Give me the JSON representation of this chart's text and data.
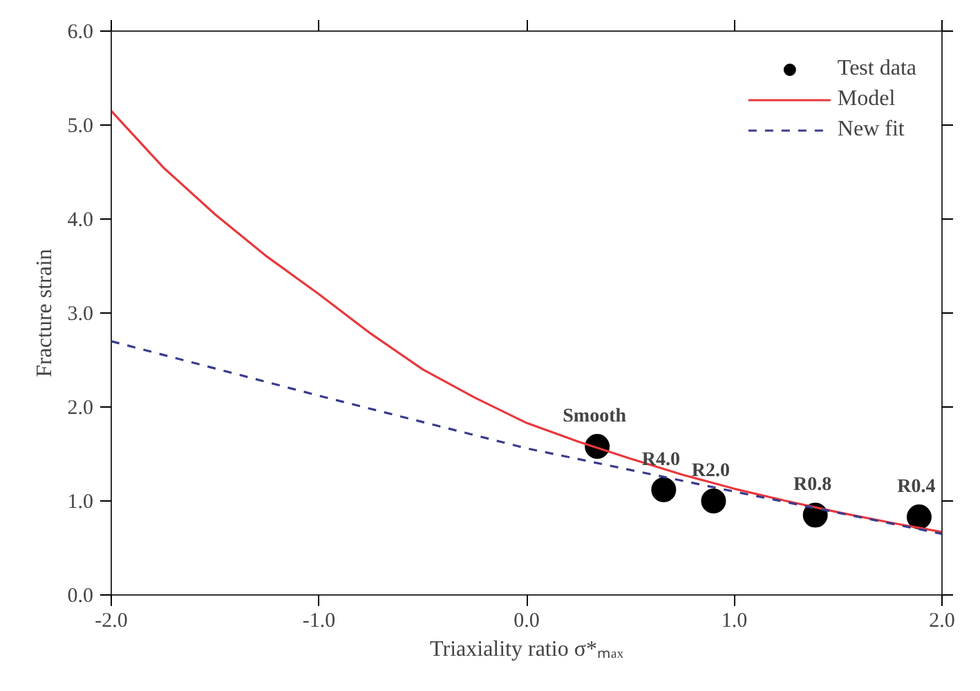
{
  "chart_data": {
    "type": "line",
    "xlabel": "Triaxiality ratio σ*ₘₐₓ",
    "ylabel": "Fracture strain",
    "xlim": [
      -2,
      2
    ],
    "ylim": [
      0,
      6
    ],
    "xticks": [
      {
        "value": -2,
        "label": "-2.0"
      },
      {
        "value": -1,
        "label": "-1.0"
      },
      {
        "value": 0,
        "label": "0.0"
      },
      {
        "value": 1,
        "label": "1.0"
      },
      {
        "value": 2,
        "label": "2.0"
      }
    ],
    "yticks": [
      {
        "value": 0,
        "label": "0.0"
      },
      {
        "value": 1,
        "label": "1.0"
      },
      {
        "value": 2,
        "label": "2.0"
      },
      {
        "value": 3,
        "label": "3.0"
      },
      {
        "value": 4,
        "label": "4.0"
      },
      {
        "value": 5,
        "label": "5.0"
      },
      {
        "value": 6,
        "label": "6.0"
      }
    ],
    "grid": false,
    "legend": "top right",
    "series": [
      {
        "name": "Test data",
        "type": "scatter",
        "marker": "circle",
        "color": "#000000",
        "x": [
          0.34,
          0.66,
          0.9,
          1.39,
          1.89
        ],
        "values": [
          1.58,
          1.12,
          1.0,
          0.85,
          0.83
        ]
      },
      {
        "name": "Model",
        "line_style": "solid",
        "color": "#e8383d",
        "x": [
          -2,
          -1.75,
          -1.5,
          -1.25,
          -1,
          -0.75,
          -0.5,
          -0.25,
          0,
          0.25,
          0.5,
          0.75,
          1,
          1.25,
          1.5,
          1.75,
          2
        ],
        "values": [
          5.15,
          4.55,
          4.05,
          3.6,
          3.2,
          2.78,
          2.4,
          2.1,
          1.83,
          1.63,
          1.45,
          1.28,
          1.13,
          1.0,
          0.88,
          0.77,
          0.67
        ]
      },
      {
        "name": "New fit",
        "line_style": "dashed",
        "color": "#3a3a8c",
        "x": [
          -2,
          -1,
          0,
          1,
          2
        ],
        "values": [
          2.7,
          2.12,
          1.56,
          1.1,
          0.65
        ]
      }
    ],
    "annotations": [
      {
        "text": "Smooth",
        "x": 0.34,
        "y": 1.58
      },
      {
        "text": "R4.0",
        "x": 0.66,
        "y": 1.12
      },
      {
        "text": "R2.0",
        "x": 0.9,
        "y": 1.0
      },
      {
        "text": "R0.8",
        "x": 1.39,
        "y": 0.85
      },
      {
        "text": "R0.4",
        "x": 1.89,
        "y": 0.83
      }
    ]
  }
}
